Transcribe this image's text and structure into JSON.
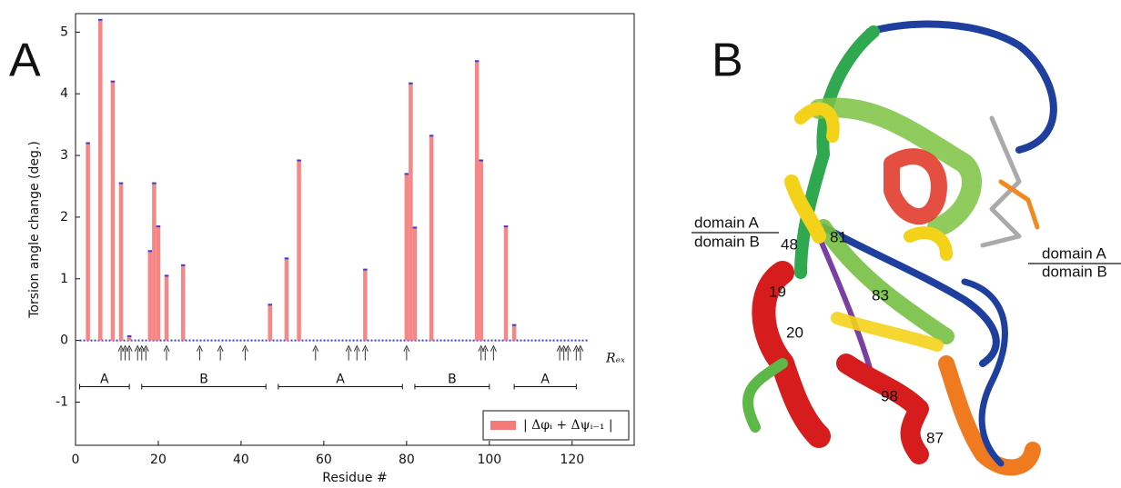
{
  "panels": {
    "a": "A",
    "b": "B"
  },
  "chart_data": {
    "type": "bar",
    "y_label": "Torsion angle change (deg.)",
    "x_label": "Residue #",
    "x": [
      3,
      6,
      9,
      11,
      13,
      18,
      19,
      20,
      22,
      26,
      47,
      51,
      54,
      70,
      80,
      81,
      82,
      86,
      97,
      98,
      104,
      106
    ],
    "values": [
      3.2,
      5.2,
      4.2,
      2.55,
      0.07,
      1.45,
      2.55,
      1.85,
      1.05,
      1.22,
      0.58,
      1.33,
      2.92,
      1.15,
      2.7,
      4.17,
      1.83,
      3.32,
      4.53,
      2.92,
      1.85,
      0.25
    ],
    "color": "#f47a7a",
    "cap_color": "#3b3bd6",
    "xlim": [
      0,
      135
    ],
    "ylim": [
      -1.7,
      5.3
    ],
    "xticks": [
      0,
      20,
      40,
      60,
      80,
      100,
      120
    ],
    "yticks": [
      -1,
      0,
      1,
      2,
      3,
      4,
      5
    ],
    "legend": "| Δφᵢ + Δψᵢ₋₁ |",
    "legend_position": "lower right",
    "rex_label": "Rₑₓ",
    "rex_x": [
      11,
      12,
      13,
      15,
      16,
      17,
      22,
      30,
      35,
      41,
      58,
      66,
      68,
      70,
      80,
      98,
      99,
      101,
      117,
      118,
      119,
      121,
      122
    ],
    "domain_y": -0.75,
    "domains": [
      {
        "label": "A",
        "start": 1,
        "end": 13
      },
      {
        "label": "B",
        "start": 16,
        "end": 46
      },
      {
        "label": "A",
        "start": 49,
        "end": 79
      },
      {
        "label": "B",
        "start": 82,
        "end": 100
      },
      {
        "label": "A",
        "start": 106,
        "end": 121
      }
    ]
  },
  "structure": {
    "left_top": "domain A",
    "left_bottom": "domain B",
    "right_top": "domain A",
    "right_bottom": "domain B",
    "residues": [
      "48",
      "81",
      "19",
      "20",
      "83",
      "98",
      "87"
    ]
  }
}
